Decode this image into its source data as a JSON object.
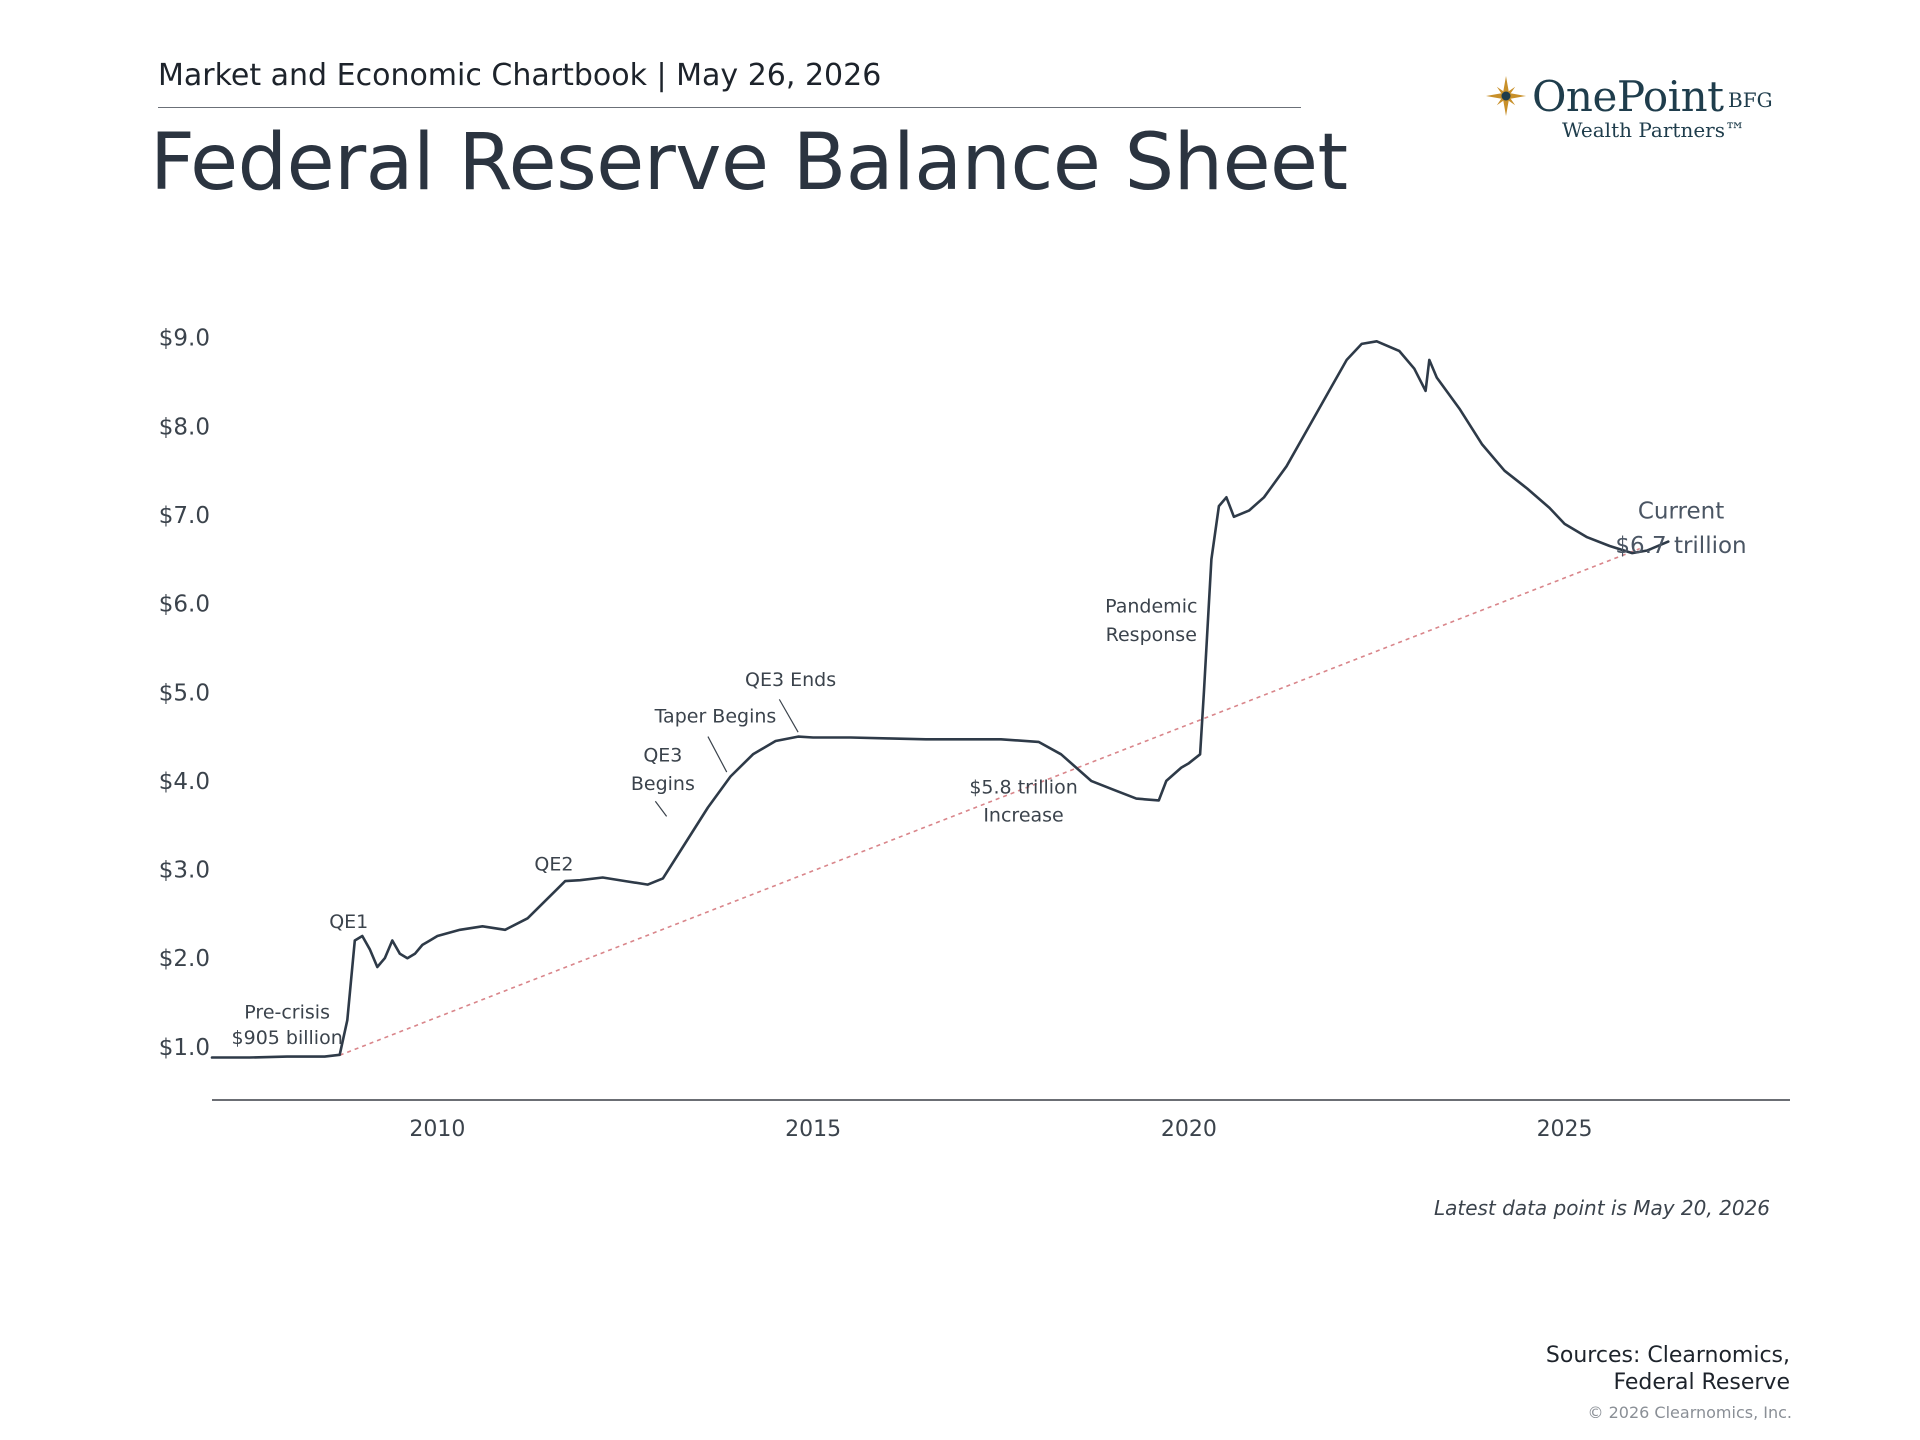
{
  "header": {
    "chartbook": "Market and Economic Chartbook | May 26, 2026",
    "title": "Federal Reserve Balance Sheet"
  },
  "logo": {
    "name": "OnePoint",
    "suffix": "BFG",
    "tagline": "Wealth Partners™",
    "icon": "star-icon",
    "colors": {
      "text": "#1f3d4c",
      "star": "#c8902a"
    }
  },
  "footer": {
    "note": "Latest data point is May 20, 2026",
    "sources_line1": "Sources: Clearnomics,",
    "sources_line2": "Federal Reserve",
    "copyright": "© 2026 Clearnomics, Inc."
  },
  "chart_data": {
    "type": "line",
    "title": "",
    "xlabel": "",
    "ylabel": "",
    "xlim": [
      2007.0,
      2028.0
    ],
    "ylim": [
      0.4,
      9.2
    ],
    "x_ticks": [
      2010,
      2015,
      2020,
      2025
    ],
    "x_tick_labels": [
      "2010",
      "2015",
      "2020",
      "2025"
    ],
    "y_ticks": [
      1,
      2,
      3,
      4,
      5,
      6,
      7,
      8,
      9
    ],
    "y_tick_labels": [
      "$1.0",
      "$2.0",
      "$3.0",
      "$4.0",
      "$5.0",
      "$6.0",
      "$7.0",
      "$8.0",
      "$9.0"
    ],
    "grid": false,
    "line_color": "#2e3a48",
    "trend_color": "#d9858a",
    "series": [
      {
        "x": [
          2007.0,
          2007.5,
          2008.0,
          2008.5,
          2008.7,
          2008.8,
          2008.9,
          2009.0,
          2009.1,
          2009.2,
          2009.3,
          2009.4,
          2009.5,
          2009.6,
          2009.7,
          2009.8,
          2009.9,
          2010.0,
          2010.3,
          2010.6,
          2010.9,
          2011.2,
          2011.5,
          2011.7,
          2011.9,
          2012.2,
          2012.5,
          2012.8,
          2013.0,
          2013.3,
          2013.6,
          2013.9,
          2014.2,
          2014.5,
          2014.8,
          2015.0,
          2015.5,
          2016.0,
          2016.5,
          2017.0,
          2017.5,
          2018.0,
          2018.3,
          2018.7,
          2019.0,
          2019.3,
          2019.6,
          2019.7,
          2019.9,
          2020.0,
          2020.15,
          2020.2,
          2020.3,
          2020.4,
          2020.5,
          2020.6,
          2020.8,
          2021.0,
          2021.3,
          2021.6,
          2021.9,
          2022.1,
          2022.3,
          2022.5,
          2022.8,
          2023.0,
          2023.15,
          2023.2,
          2023.3,
          2023.6,
          2023.9,
          2024.2,
          2024.5,
          2024.8,
          2025.0,
          2025.3,
          2025.6,
          2025.9,
          2026.1,
          2026.38
        ],
        "values": [
          0.88,
          0.88,
          0.89,
          0.89,
          0.91,
          1.3,
          2.2,
          2.25,
          2.1,
          1.9,
          2.0,
          2.2,
          2.05,
          2.0,
          2.05,
          2.15,
          2.2,
          2.25,
          2.32,
          2.36,
          2.32,
          2.45,
          2.7,
          2.87,
          2.88,
          2.91,
          2.87,
          2.83,
          2.9,
          3.3,
          3.7,
          4.05,
          4.3,
          4.45,
          4.5,
          4.49,
          4.49,
          4.48,
          4.47,
          4.47,
          4.47,
          4.44,
          4.3,
          4.0,
          3.9,
          3.8,
          3.78,
          4.0,
          4.15,
          4.2,
          4.3,
          5.0,
          6.5,
          7.1,
          7.2,
          6.98,
          7.05,
          7.2,
          7.55,
          8.0,
          8.45,
          8.75,
          8.93,
          8.96,
          8.85,
          8.65,
          8.4,
          8.75,
          8.55,
          8.2,
          7.8,
          7.5,
          7.3,
          7.08,
          6.9,
          6.75,
          6.65,
          6.57,
          6.6,
          6.7
        ]
      }
    ],
    "trend": {
      "x": [
        2008.7,
        2026.0
      ],
      "values": [
        0.905,
        6.62
      ]
    },
    "annotations": [
      {
        "label": "Pre-crisis",
        "x": 2008.0,
        "y": 1.32
      },
      {
        "label": "$905 billion",
        "x": 2008.0,
        "y": 1.03
      },
      {
        "label": "QE1",
        "x": 2008.82,
        "y": 2.34
      },
      {
        "label": "QE2",
        "x": 2011.55,
        "y": 2.99
      },
      {
        "label": "QE3",
        "x": 2013.0,
        "y": 4.22
      },
      {
        "label": "Begins",
        "x": 2013.0,
        "y": 3.9
      },
      {
        "label": "Taper Begins",
        "x": 2013.7,
        "y": 4.66
      },
      {
        "label": "QE3 Ends",
        "x": 2014.7,
        "y": 5.07
      },
      {
        "label": "$5.8 trillion",
        "x": 2017.8,
        "y": 3.86
      },
      {
        "label": "Increase",
        "x": 2017.8,
        "y": 3.54
      },
      {
        "label": "Pandemic",
        "x": 2019.5,
        "y": 5.9
      },
      {
        "label": "Response",
        "x": 2019.5,
        "y": 5.58
      },
      {
        "label": "Current",
        "x": 2026.55,
        "y": 6.96
      },
      {
        "label": "$6.7 trillion",
        "x": 2026.55,
        "y": 6.57
      }
    ],
    "leader_lines": [
      {
        "name": "qe3-begins-leader",
        "from": [
          2012.9,
          3.77
        ],
        "to": [
          2013.05,
          3.6
        ]
      },
      {
        "name": "taper-begins-leader",
        "from": [
          2013.6,
          4.5
        ],
        "to": [
          2013.85,
          4.1
        ]
      },
      {
        "name": "qe3-ends-leader",
        "from": [
          2014.55,
          4.92
        ],
        "to": [
          2014.8,
          4.55
        ]
      }
    ]
  }
}
